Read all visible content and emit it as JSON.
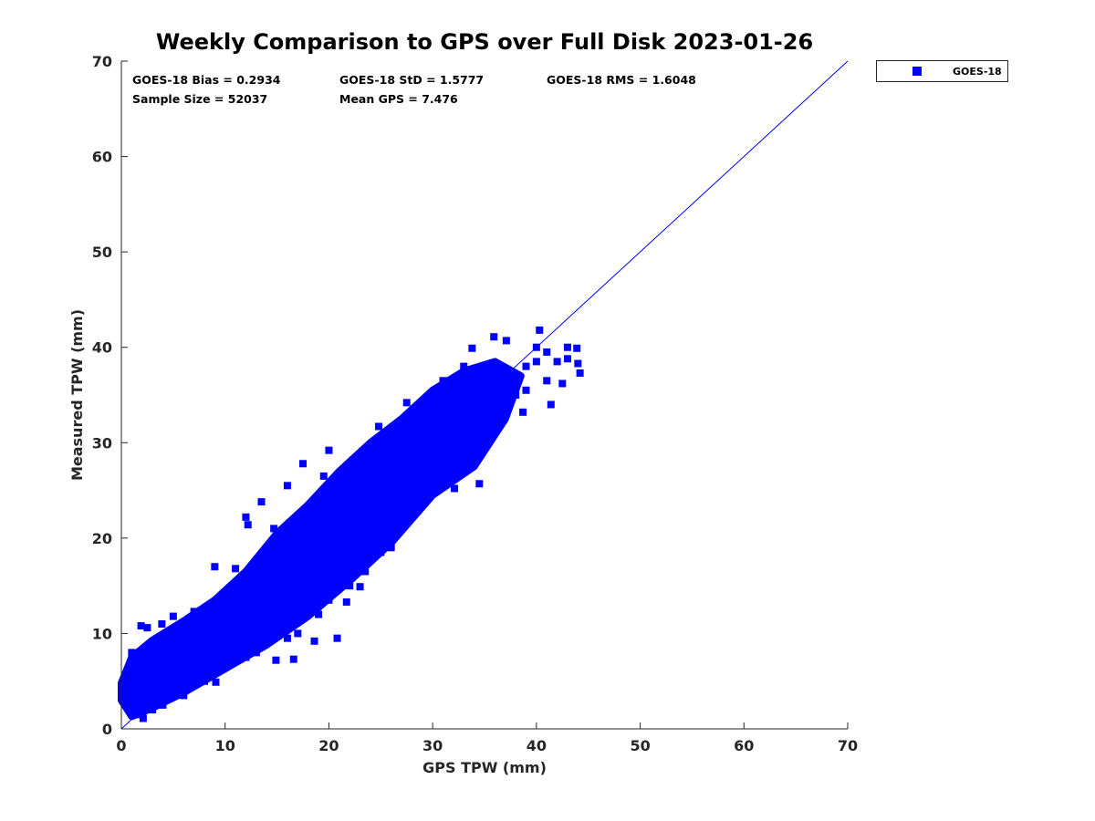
{
  "chart_data": {
    "type": "scatter",
    "title": "Weekly Comparison to GPS over Full Disk 2023-01-26",
    "xlabel": "GPS TPW (mm)",
    "ylabel": "Measured TPW (mm)",
    "xlim": [
      0,
      70
    ],
    "ylim": [
      0,
      70
    ],
    "xticks": [
      "0",
      "10",
      "20",
      "30",
      "40",
      "50",
      "60",
      "70"
    ],
    "yticks": [
      "0",
      "10",
      "20",
      "30",
      "40",
      "50",
      "60",
      "70"
    ],
    "grid": false,
    "legend": {
      "placement": "outside-top-right",
      "entries": [
        "GOES-18"
      ]
    },
    "series_color": "#0000ff",
    "reference_line": {
      "from": [
        0,
        0
      ],
      "to": [
        70,
        70
      ],
      "color": "#0000ff"
    },
    "stats": {
      "bias": "GOES-18 Bias = 0.2934",
      "std": "GOES-18 StD = 1.5777",
      "rms": "GOES-18 RMS = 1.6048",
      "sample_size": "Sample Size = 52037",
      "mean_gps": "Mean GPS = 7.476"
    },
    "dense_region": [
      [
        0,
        3
      ],
      [
        1,
        1.3
      ],
      [
        3,
        2.2
      ],
      [
        6,
        3.8
      ],
      [
        10,
        6.3
      ],
      [
        14,
        8.8
      ],
      [
        18,
        11.8
      ],
      [
        22,
        15.5
      ],
      [
        26,
        19.5
      ],
      [
        30,
        24.5
      ],
      [
        34,
        27.5
      ],
      [
        37,
        32.5
      ],
      [
        38.5,
        37
      ],
      [
        36,
        38.5
      ],
      [
        33,
        37.5
      ],
      [
        30,
        35.5
      ],
      [
        27,
        32.5
      ],
      [
        24,
        30
      ],
      [
        21,
        27
      ],
      [
        18,
        23.5
      ],
      [
        15,
        20.5
      ],
      [
        12,
        16.5
      ],
      [
        9,
        13.5
      ],
      [
        6,
        11.3
      ],
      [
        3,
        9.3
      ],
      [
        1,
        7.5
      ],
      [
        0,
        4.8
      ]
    ],
    "series": [
      {
        "name": "GOES-18",
        "points": [
          [
            1.9,
            10.8
          ],
          [
            3.9,
            11
          ],
          [
            12,
            22.2
          ],
          [
            12.2,
            21.4
          ],
          [
            14.7,
            21
          ],
          [
            17.5,
            27.8
          ],
          [
            20,
            29.2
          ],
          [
            35.9,
            41.1
          ],
          [
            40.3,
            41.8
          ],
          [
            44.2,
            37.3
          ],
          [
            43.9,
            39.9
          ],
          [
            41.4,
            34
          ],
          [
            38.7,
            33.2
          ],
          [
            34.5,
            25.7
          ],
          [
            32.1,
            25.2
          ],
          [
            22.7,
            18.6
          ],
          [
            26.8,
            20.8
          ],
          [
            20.8,
            9.5
          ],
          [
            18.6,
            9.2
          ],
          [
            14.9,
            7.2
          ],
          [
            16.6,
            7.3
          ],
          [
            11,
            7.1
          ],
          [
            9.1,
            4.9
          ],
          [
            2.1,
            1.1
          ],
          [
            0,
            3.7
          ],
          [
            33.8,
            39.9
          ],
          [
            37.1,
            40.7
          ],
          [
            32.5,
            34.9
          ],
          [
            27.5,
            34.2
          ],
          [
            24.8,
            31.7
          ],
          [
            11,
            16.8
          ],
          [
            10.1,
            13.3
          ],
          [
            23,
            14.9
          ],
          [
            21.7,
            13.3
          ],
          [
            2.5,
            10.6
          ],
          [
            5,
            11.8
          ],
          [
            7,
            12.3
          ],
          [
            9,
            17
          ],
          [
            13.5,
            23.8
          ],
          [
            16,
            25.5
          ],
          [
            19.5,
            26.5
          ],
          [
            22,
            27.5
          ],
          [
            25,
            29.5
          ],
          [
            28,
            32.5
          ],
          [
            30,
            35
          ],
          [
            31,
            36.5
          ],
          [
            33,
            38
          ],
          [
            35,
            36
          ],
          [
            39,
            38
          ],
          [
            40,
            40
          ],
          [
            41,
            39.5
          ],
          [
            42,
            38.5
          ],
          [
            43,
            40
          ],
          [
            44,
            38.3
          ],
          [
            42.5,
            36.2
          ],
          [
            41,
            36.5
          ],
          [
            39,
            35.5
          ],
          [
            36,
            33
          ],
          [
            35,
            30.5
          ],
          [
            33,
            27.5
          ],
          [
            31,
            25.5
          ],
          [
            29,
            24.5
          ],
          [
            27,
            22.5
          ],
          [
            26,
            19
          ],
          [
            25,
            18.5
          ],
          [
            23.5,
            16.5
          ],
          [
            22,
            15
          ],
          [
            20,
            13.5
          ],
          [
            19,
            12
          ],
          [
            17,
            10
          ],
          [
            16,
            9.5
          ],
          [
            13,
            8
          ],
          [
            12,
            7.5
          ],
          [
            10,
            6.5
          ],
          [
            8,
            5
          ],
          [
            6,
            3.5
          ],
          [
            4,
            2.5
          ],
          [
            3,
            2
          ],
          [
            1.5,
            1.5
          ],
          [
            0.5,
            4.5
          ],
          [
            0.3,
            5.2
          ],
          [
            1,
            8
          ],
          [
            4,
            9
          ],
          [
            6,
            9.5
          ],
          [
            8,
            11
          ],
          [
            10,
            12
          ],
          [
            12,
            14
          ],
          [
            15,
            17
          ],
          [
            18,
            20
          ],
          [
            20,
            22
          ],
          [
            23,
            25
          ],
          [
            26,
            28
          ],
          [
            29,
            30
          ],
          [
            32,
            32
          ],
          [
            34,
            33.5
          ],
          [
            37,
            36.5
          ],
          [
            38,
            35
          ],
          [
            36,
            38
          ],
          [
            40,
            38.5
          ],
          [
            43,
            38.8
          ]
        ]
      }
    ]
  }
}
